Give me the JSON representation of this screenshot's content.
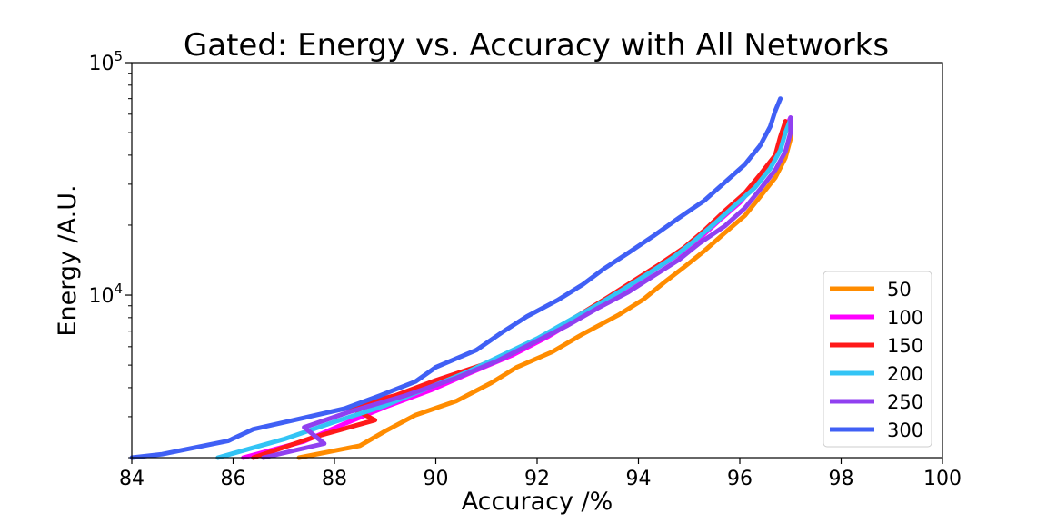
{
  "chart_data": {
    "type": "line",
    "title": "Gated: Energy vs. Accuracy with All Networks",
    "xlabel": "Accuracy /%",
    "ylabel": "Energy /A.U.",
    "xlim": [
      84,
      100
    ],
    "ylim": [
      2000,
      100000
    ],
    "yscale": "log",
    "x_ticks": [
      "84",
      "86",
      "88",
      "90",
      "92",
      "94",
      "96",
      "98",
      "100"
    ],
    "y_ticks": [
      {
        "base": "10",
        "exp": "4",
        "value": 10000
      },
      {
        "base": "10",
        "exp": "5",
        "value": 100000
      }
    ],
    "grid": false,
    "legend_position": "lower-right",
    "series": [
      {
        "name": "50",
        "color": "#ff8c00",
        "points": [
          [
            87.3,
            2000
          ],
          [
            88.5,
            2250
          ],
          [
            89.0,
            2600
          ],
          [
            89.6,
            3050
          ],
          [
            90.4,
            3500
          ],
          [
            91.1,
            4200
          ],
          [
            91.6,
            4900
          ],
          [
            92.3,
            5700
          ],
          [
            92.9,
            6800
          ],
          [
            93.6,
            8200
          ],
          [
            94.1,
            9600
          ],
          [
            94.5,
            11300
          ],
          [
            94.9,
            13200
          ],
          [
            95.3,
            15500
          ],
          [
            95.7,
            18500
          ],
          [
            96.1,
            22000
          ],
          [
            96.4,
            26500
          ],
          [
            96.7,
            32000
          ],
          [
            96.9,
            39000
          ],
          [
            97.0,
            47000
          ],
          [
            97.0,
            55000
          ]
        ]
      },
      {
        "name": "100",
        "color": "#ff00ff",
        "points": [
          [
            86.2,
            2000
          ],
          [
            87.4,
            2350
          ],
          [
            88.2,
            2800
          ],
          [
            89.0,
            3300
          ],
          [
            89.9,
            3900
          ],
          [
            90.7,
            4650
          ],
          [
            91.5,
            5500
          ],
          [
            92.2,
            6600
          ],
          [
            92.8,
            7900
          ],
          [
            93.4,
            9400
          ],
          [
            93.9,
            11000
          ],
          [
            94.3,
            12800
          ],
          [
            94.8,
            15000
          ],
          [
            95.2,
            17500
          ],
          [
            95.6,
            21000
          ],
          [
            96.0,
            25000
          ],
          [
            96.3,
            30000
          ],
          [
            96.6,
            36000
          ],
          [
            96.8,
            43000
          ],
          [
            96.9,
            52000
          ],
          [
            97.0,
            58000
          ]
        ]
      },
      {
        "name": "150",
        "color": "#ff1a1a",
        "points": [
          [
            86.4,
            2000
          ],
          [
            87.6,
            2450
          ],
          [
            88.8,
            2900
          ],
          [
            88.3,
            3300
          ],
          [
            89.2,
            3700
          ],
          [
            90.0,
            4300
          ],
          [
            90.9,
            5000
          ],
          [
            91.7,
            5900
          ],
          [
            92.3,
            7000
          ],
          [
            92.9,
            8400
          ],
          [
            93.4,
            9800
          ],
          [
            93.9,
            11500
          ],
          [
            94.4,
            13500
          ],
          [
            94.9,
            16000
          ],
          [
            95.3,
            19000
          ],
          [
            95.7,
            23000
          ],
          [
            96.1,
            27500
          ],
          [
            96.4,
            33000
          ],
          [
            96.7,
            40000
          ],
          [
            96.8,
            48000
          ],
          [
            96.9,
            56000
          ]
        ]
      },
      {
        "name": "200",
        "color": "#33c4f5",
        "points": [
          [
            85.7,
            2000
          ],
          [
            87.0,
            2400
          ],
          [
            88.0,
            2850
          ],
          [
            89.0,
            3350
          ],
          [
            89.8,
            3950
          ],
          [
            90.6,
            4650
          ],
          [
            91.3,
            5500
          ],
          [
            92.0,
            6500
          ],
          [
            92.6,
            7700
          ],
          [
            93.2,
            9100
          ],
          [
            93.7,
            10600
          ],
          [
            94.2,
            12400
          ],
          [
            94.7,
            14600
          ],
          [
            95.1,
            17100
          ],
          [
            95.5,
            20300
          ],
          [
            95.9,
            24300
          ],
          [
            96.3,
            29000
          ],
          [
            96.6,
            35000
          ],
          [
            96.8,
            42000
          ],
          [
            96.9,
            50000
          ],
          [
            97.0,
            57000
          ]
        ]
      },
      {
        "name": "250",
        "color": "#9040f0",
        "points": [
          [
            86.6,
            2000
          ],
          [
            87.8,
            2300
          ],
          [
            87.4,
            2700
          ],
          [
            88.3,
            3150
          ],
          [
            89.4,
            3700
          ],
          [
            90.4,
            4400
          ],
          [
            91.2,
            5200
          ],
          [
            91.9,
            6200
          ],
          [
            92.6,
            7400
          ],
          [
            93.2,
            8800
          ],
          [
            93.8,
            10300
          ],
          [
            94.3,
            12100
          ],
          [
            94.8,
            14200
          ],
          [
            95.2,
            16700
          ],
          [
            95.7,
            19800
          ],
          [
            96.1,
            23700
          ],
          [
            96.4,
            28500
          ],
          [
            96.7,
            34500
          ],
          [
            96.9,
            41500
          ],
          [
            97.0,
            50000
          ],
          [
            97.0,
            58000
          ]
        ]
      },
      {
        "name": "300",
        "color": "#4060f5",
        "points": [
          [
            84.0,
            2000
          ],
          [
            84.6,
            2070
          ],
          [
            85.9,
            2360
          ],
          [
            86.4,
            2650
          ],
          [
            87.2,
            2900
          ],
          [
            88.2,
            3250
          ],
          [
            88.9,
            3700
          ],
          [
            89.6,
            4250
          ],
          [
            90.0,
            4900
          ],
          [
            90.8,
            5800
          ],
          [
            91.3,
            6900
          ],
          [
            91.8,
            8100
          ],
          [
            92.4,
            9500
          ],
          [
            92.9,
            11100
          ],
          [
            93.3,
            12900
          ],
          [
            93.8,
            15200
          ],
          [
            94.3,
            18000
          ],
          [
            94.8,
            21500
          ],
          [
            95.3,
            25500
          ],
          [
            95.7,
            30500
          ],
          [
            96.1,
            36500
          ],
          [
            96.4,
            44000
          ],
          [
            96.6,
            53000
          ],
          [
            96.7,
            62000
          ],
          [
            96.8,
            70000
          ]
        ]
      }
    ]
  }
}
